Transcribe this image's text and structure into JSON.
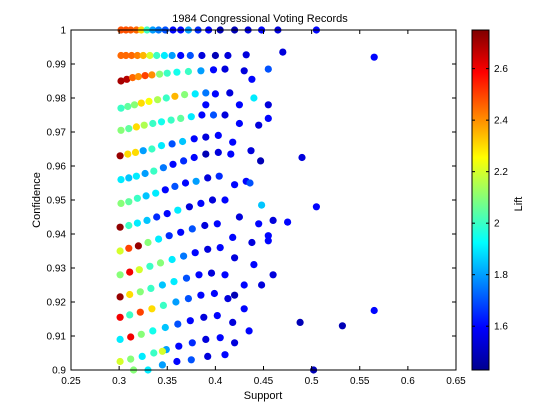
{
  "chart_data": {
    "type": "scatter",
    "title": "1984 Congressional Voting Records",
    "xlabel": "Support",
    "ylabel": "Confidence",
    "xlim": [
      0.25,
      0.65
    ],
    "ylim": [
      0.9,
      1.0
    ],
    "xticks": [
      "0.25",
      "0.3",
      "0.35",
      "0.4",
      "0.45",
      "0.5",
      "0.55",
      "0.6",
      "0.65"
    ],
    "yticks": [
      "0.9",
      "0.91",
      "0.92",
      "0.93",
      "0.94",
      "0.95",
      "0.96",
      "0.97",
      "0.98",
      "0.99",
      "1"
    ],
    "grid": false,
    "colorbar": {
      "label": "Lift",
      "range": [
        1.43,
        2.75
      ],
      "ticks": [
        "1.6",
        "1.8",
        "2",
        "2.2",
        "2.4",
        "2.6"
      ],
      "colormap": "jet"
    },
    "points": [
      {
        "x": 0.302,
        "y": 1.0,
        "c": 2.48
      },
      {
        "x": 0.307,
        "y": 1.0,
        "c": 2.48
      },
      {
        "x": 0.312,
        "y": 1.0,
        "c": 2.47
      },
      {
        "x": 0.318,
        "y": 1.0,
        "c": 2.45
      },
      {
        "x": 0.323,
        "y": 1.0,
        "c": 2.3
      },
      {
        "x": 0.329,
        "y": 1.0,
        "c": 2.0
      },
      {
        "x": 0.335,
        "y": 1.0,
        "c": 1.8
      },
      {
        "x": 0.341,
        "y": 1.0,
        "c": 1.75
      },
      {
        "x": 0.348,
        "y": 1.0,
        "c": 1.7
      },
      {
        "x": 0.356,
        "y": 1.0,
        "c": 1.6
      },
      {
        "x": 0.364,
        "y": 1.0,
        "c": 1.6
      },
      {
        "x": 0.372,
        "y": 1.0,
        "c": 1.8
      },
      {
        "x": 0.382,
        "y": 1.0,
        "c": 1.65
      },
      {
        "x": 0.393,
        "y": 1.0,
        "c": 1.6
      },
      {
        "x": 0.405,
        "y": 1.0,
        "c": 1.5
      },
      {
        "x": 0.42,
        "y": 1.0,
        "c": 1.5
      },
      {
        "x": 0.434,
        "y": 1.0,
        "c": 1.55
      },
      {
        "x": 0.448,
        "y": 1.0,
        "c": 1.6
      },
      {
        "x": 0.465,
        "y": 1.0,
        "c": 1.55
      },
      {
        "x": 0.505,
        "y": 1.0,
        "c": 1.6
      },
      {
        "x": 0.302,
        "y": 0.9925,
        "c": 2.45
      },
      {
        "x": 0.307,
        "y": 0.9925,
        "c": 2.45
      },
      {
        "x": 0.313,
        "y": 0.9925,
        "c": 2.45
      },
      {
        "x": 0.319,
        "y": 0.9925,
        "c": 2.42
      },
      {
        "x": 0.325,
        "y": 0.9925,
        "c": 2.35
      },
      {
        "x": 0.332,
        "y": 0.9925,
        "c": 2.2
      },
      {
        "x": 0.339,
        "y": 0.9925,
        "c": 2.0
      },
      {
        "x": 0.347,
        "y": 0.9925,
        "c": 1.9
      },
      {
        "x": 0.355,
        "y": 0.9925,
        "c": 1.8
      },
      {
        "x": 0.364,
        "y": 0.9925,
        "c": 1.6
      },
      {
        "x": 0.374,
        "y": 0.9925,
        "c": 1.7
      },
      {
        "x": 0.386,
        "y": 0.9925,
        "c": 1.55
      },
      {
        "x": 0.4,
        "y": 0.9925,
        "c": 1.5
      },
      {
        "x": 0.413,
        "y": 0.9925,
        "c": 1.55
      },
      {
        "x": 0.432,
        "y": 0.9927,
        "c": 1.55
      },
      {
        "x": 0.47,
        "y": 0.9935,
        "c": 1.55
      },
      {
        "x": 0.565,
        "y": 0.992,
        "c": 1.6
      },
      {
        "x": 0.302,
        "y": 0.985,
        "c": 2.7
      },
      {
        "x": 0.308,
        "y": 0.9855,
        "c": 2.68
      },
      {
        "x": 0.314,
        "y": 0.986,
        "c": 2.45
      },
      {
        "x": 0.32,
        "y": 0.9863,
        "c": 2.4
      },
      {
        "x": 0.327,
        "y": 0.9866,
        "c": 2.5
      },
      {
        "x": 0.334,
        "y": 0.9868,
        "c": 2.4
      },
      {
        "x": 0.342,
        "y": 0.987,
        "c": 2.1
      },
      {
        "x": 0.35,
        "y": 0.9873,
        "c": 2.0
      },
      {
        "x": 0.36,
        "y": 0.9876,
        "c": 1.95
      },
      {
        "x": 0.372,
        "y": 0.9878,
        "c": 2.0
      },
      {
        "x": 0.385,
        "y": 0.988,
        "c": 1.8
      },
      {
        "x": 0.398,
        "y": 0.9883,
        "c": 1.6
      },
      {
        "x": 0.41,
        "y": 0.9885,
        "c": 1.55
      },
      {
        "x": 0.43,
        "y": 0.988,
        "c": 1.55
      },
      {
        "x": 0.455,
        "y": 0.9885,
        "c": 1.7
      },
      {
        "x": 0.438,
        "y": 0.9855,
        "c": 1.6
      },
      {
        "x": 0.302,
        "y": 0.977,
        "c": 2.0
      },
      {
        "x": 0.309,
        "y": 0.9775,
        "c": 2.05
      },
      {
        "x": 0.316,
        "y": 0.978,
        "c": 2.1
      },
      {
        "x": 0.323,
        "y": 0.9785,
        "c": 2.3
      },
      {
        "x": 0.331,
        "y": 0.979,
        "c": 2.25
      },
      {
        "x": 0.34,
        "y": 0.9795,
        "c": 2.15
      },
      {
        "x": 0.349,
        "y": 0.98,
        "c": 2.0
      },
      {
        "x": 0.358,
        "y": 0.9805,
        "c": 2.35
      },
      {
        "x": 0.368,
        "y": 0.981,
        "c": 2.1
      },
      {
        "x": 0.379,
        "y": 0.9812,
        "c": 1.9
      },
      {
        "x": 0.39,
        "y": 0.9815,
        "c": 1.75
      },
      {
        "x": 0.4,
        "y": 0.9812,
        "c": 1.6
      },
      {
        "x": 0.415,
        "y": 0.9815,
        "c": 1.55
      },
      {
        "x": 0.425,
        "y": 0.978,
        "c": 1.6
      },
      {
        "x": 0.44,
        "y": 0.98,
        "c": 1.9
      },
      {
        "x": 0.455,
        "y": 0.978,
        "c": 1.55
      },
      {
        "x": 0.39,
        "y": 0.978,
        "c": 1.6
      },
      {
        "x": 0.302,
        "y": 0.9705,
        "c": 2.1
      },
      {
        "x": 0.31,
        "y": 0.971,
        "c": 2.05
      },
      {
        "x": 0.318,
        "y": 0.9715,
        "c": 2.3
      },
      {
        "x": 0.326,
        "y": 0.972,
        "c": 2.15
      },
      {
        "x": 0.335,
        "y": 0.9725,
        "c": 2.0
      },
      {
        "x": 0.344,
        "y": 0.973,
        "c": 1.95
      },
      {
        "x": 0.354,
        "y": 0.9735,
        "c": 2.0
      },
      {
        "x": 0.364,
        "y": 0.974,
        "c": 2.05
      },
      {
        "x": 0.375,
        "y": 0.9745,
        "c": 1.9
      },
      {
        "x": 0.386,
        "y": 0.975,
        "c": 1.6
      },
      {
        "x": 0.398,
        "y": 0.975,
        "c": 1.7
      },
      {
        "x": 0.41,
        "y": 0.975,
        "c": 1.55
      },
      {
        "x": 0.425,
        "y": 0.9725,
        "c": 1.6
      },
      {
        "x": 0.445,
        "y": 0.972,
        "c": 1.55
      },
      {
        "x": 0.455,
        "y": 0.974,
        "c": 1.6
      },
      {
        "x": 0.301,
        "y": 0.963,
        "c": 2.72
      },
      {
        "x": 0.309,
        "y": 0.9635,
        "c": 2.3
      },
      {
        "x": 0.317,
        "y": 0.964,
        "c": 2.3
      },
      {
        "x": 0.325,
        "y": 0.9645,
        "c": 1.8
      },
      {
        "x": 0.334,
        "y": 0.965,
        "c": 2.0
      },
      {
        "x": 0.344,
        "y": 0.966,
        "c": 1.9
      },
      {
        "x": 0.355,
        "y": 0.9665,
        "c": 1.7
      },
      {
        "x": 0.366,
        "y": 0.9672,
        "c": 1.85
      },
      {
        "x": 0.378,
        "y": 0.968,
        "c": 1.6
      },
      {
        "x": 0.39,
        "y": 0.9685,
        "c": 1.55
      },
      {
        "x": 0.403,
        "y": 0.969,
        "c": 1.6
      },
      {
        "x": 0.418,
        "y": 0.967,
        "c": 1.6
      },
      {
        "x": 0.437,
        "y": 0.9645,
        "c": 1.55
      },
      {
        "x": 0.447,
        "y": 0.9615,
        "c": 1.5
      },
      {
        "x": 0.49,
        "y": 0.9625,
        "c": 1.55
      },
      {
        "x": 0.302,
        "y": 0.956,
        "c": 1.9
      },
      {
        "x": 0.31,
        "y": 0.9565,
        "c": 1.85
      },
      {
        "x": 0.318,
        "y": 0.957,
        "c": 1.9
      },
      {
        "x": 0.327,
        "y": 0.9578,
        "c": 1.8
      },
      {
        "x": 0.336,
        "y": 0.9585,
        "c": 2.0
      },
      {
        "x": 0.346,
        "y": 0.9595,
        "c": 1.75
      },
      {
        "x": 0.356,
        "y": 0.9605,
        "c": 1.6
      },
      {
        "x": 0.367,
        "y": 0.9615,
        "c": 1.65
      },
      {
        "x": 0.378,
        "y": 0.9625,
        "c": 1.6
      },
      {
        "x": 0.39,
        "y": 0.9635,
        "c": 1.5
      },
      {
        "x": 0.403,
        "y": 0.964,
        "c": 1.55
      },
      {
        "x": 0.416,
        "y": 0.9635,
        "c": 1.6
      },
      {
        "x": 0.432,
        "y": 0.9555,
        "c": 1.6
      },
      {
        "x": 0.436,
        "y": 0.955,
        "c": 1.7
      },
      {
        "x": 0.302,
        "y": 0.949,
        "c": 2.1
      },
      {
        "x": 0.31,
        "y": 0.9495,
        "c": 2.05
      },
      {
        "x": 0.319,
        "y": 0.9505,
        "c": 2.0
      },
      {
        "x": 0.328,
        "y": 0.9512,
        "c": 1.85
      },
      {
        "x": 0.338,
        "y": 0.952,
        "c": 1.9
      },
      {
        "x": 0.348,
        "y": 0.953,
        "c": 1.6
      },
      {
        "x": 0.358,
        "y": 0.954,
        "c": 1.7
      },
      {
        "x": 0.369,
        "y": 0.955,
        "c": 1.6
      },
      {
        "x": 0.38,
        "y": 0.9555,
        "c": 1.8
      },
      {
        "x": 0.392,
        "y": 0.9565,
        "c": 1.55
      },
      {
        "x": 0.404,
        "y": 0.957,
        "c": 1.65
      },
      {
        "x": 0.42,
        "y": 0.9545,
        "c": 1.6
      },
      {
        "x": 0.448,
        "y": 0.9485,
        "c": 1.85
      },
      {
        "x": 0.505,
        "y": 0.948,
        "c": 1.6
      },
      {
        "x": 0.301,
        "y": 0.942,
        "c": 2.73
      },
      {
        "x": 0.31,
        "y": 0.9425,
        "c": 2.0
      },
      {
        "x": 0.319,
        "y": 0.9432,
        "c": 1.9
      },
      {
        "x": 0.329,
        "y": 0.944,
        "c": 1.85
      },
      {
        "x": 0.339,
        "y": 0.945,
        "c": 1.65
      },
      {
        "x": 0.35,
        "y": 0.946,
        "c": 1.6
      },
      {
        "x": 0.361,
        "y": 0.947,
        "c": 1.9
      },
      {
        "x": 0.373,
        "y": 0.948,
        "c": 1.55
      },
      {
        "x": 0.385,
        "y": 0.949,
        "c": 1.6
      },
      {
        "x": 0.397,
        "y": 0.95,
        "c": 1.55
      },
      {
        "x": 0.41,
        "y": 0.95,
        "c": 1.6
      },
      {
        "x": 0.425,
        "y": 0.945,
        "c": 1.55
      },
      {
        "x": 0.445,
        "y": 0.943,
        "c": 1.6
      },
      {
        "x": 0.46,
        "y": 0.944,
        "c": 1.55
      },
      {
        "x": 0.475,
        "y": 0.9435,
        "c": 1.6
      },
      {
        "x": 0.455,
        "y": 0.9395,
        "c": 1.6
      },
      {
        "x": 0.301,
        "y": 0.935,
        "c": 2.2
      },
      {
        "x": 0.31,
        "y": 0.9358,
        "c": 2.5
      },
      {
        "x": 0.32,
        "y": 0.9365,
        "c": 2.72
      },
      {
        "x": 0.33,
        "y": 0.9375,
        "c": 2.1
      },
      {
        "x": 0.341,
        "y": 0.9385,
        "c": 1.9
      },
      {
        "x": 0.352,
        "y": 0.9395,
        "c": 1.65
      },
      {
        "x": 0.364,
        "y": 0.9405,
        "c": 1.6
      },
      {
        "x": 0.376,
        "y": 0.9415,
        "c": 1.7
      },
      {
        "x": 0.389,
        "y": 0.9425,
        "c": 1.55
      },
      {
        "x": 0.402,
        "y": 0.943,
        "c": 1.6
      },
      {
        "x": 0.418,
        "y": 0.939,
        "c": 1.6
      },
      {
        "x": 0.438,
        "y": 0.9375,
        "c": 1.55
      },
      {
        "x": 0.455,
        "y": 0.938,
        "c": 1.6
      },
      {
        "x": 0.301,
        "y": 0.928,
        "c": 2.1
      },
      {
        "x": 0.311,
        "y": 0.9288,
        "c": 2.6
      },
      {
        "x": 0.321,
        "y": 0.9295,
        "c": 2.2
      },
      {
        "x": 0.332,
        "y": 0.9305,
        "c": 2.0
      },
      {
        "x": 0.343,
        "y": 0.9315,
        "c": 2.1
      },
      {
        "x": 0.355,
        "y": 0.9325,
        "c": 1.9
      },
      {
        "x": 0.367,
        "y": 0.9335,
        "c": 1.75
      },
      {
        "x": 0.379,
        "y": 0.9345,
        "c": 1.6
      },
      {
        "x": 0.392,
        "y": 0.9355,
        "c": 1.55
      },
      {
        "x": 0.405,
        "y": 0.936,
        "c": 1.6
      },
      {
        "x": 0.42,
        "y": 0.933,
        "c": 1.55
      },
      {
        "x": 0.44,
        "y": 0.931,
        "c": 1.6
      },
      {
        "x": 0.46,
        "y": 0.928,
        "c": 1.55
      },
      {
        "x": 0.301,
        "y": 0.9215,
        "c": 2.72
      },
      {
        "x": 0.311,
        "y": 0.9222,
        "c": 2.3
      },
      {
        "x": 0.322,
        "y": 0.923,
        "c": 2.1
      },
      {
        "x": 0.333,
        "y": 0.924,
        "c": 2.0
      },
      {
        "x": 0.345,
        "y": 0.925,
        "c": 1.85
      },
      {
        "x": 0.357,
        "y": 0.926,
        "c": 1.9
      },
      {
        "x": 0.37,
        "y": 0.927,
        "c": 1.7
      },
      {
        "x": 0.383,
        "y": 0.928,
        "c": 1.6
      },
      {
        "x": 0.396,
        "y": 0.9285,
        "c": 1.55
      },
      {
        "x": 0.41,
        "y": 0.928,
        "c": 1.6
      },
      {
        "x": 0.43,
        "y": 0.925,
        "c": 1.6
      },
      {
        "x": 0.448,
        "y": 0.925,
        "c": 1.55
      },
      {
        "x": 0.42,
        "y": 0.922,
        "c": 1.5
      },
      {
        "x": 0.301,
        "y": 0.9155,
        "c": 2.6
      },
      {
        "x": 0.311,
        "y": 0.9162,
        "c": 2.0
      },
      {
        "x": 0.322,
        "y": 0.917,
        "c": 2.5
      },
      {
        "x": 0.334,
        "y": 0.918,
        "c": 2.3
      },
      {
        "x": 0.346,
        "y": 0.919,
        "c": 2.0
      },
      {
        "x": 0.359,
        "y": 0.92,
        "c": 1.8
      },
      {
        "x": 0.372,
        "y": 0.921,
        "c": 1.7
      },
      {
        "x": 0.385,
        "y": 0.922,
        "c": 1.6
      },
      {
        "x": 0.399,
        "y": 0.9225,
        "c": 1.6
      },
      {
        "x": 0.413,
        "y": 0.921,
        "c": 1.55
      },
      {
        "x": 0.43,
        "y": 0.918,
        "c": 1.6
      },
      {
        "x": 0.565,
        "y": 0.9175,
        "c": 1.6
      },
      {
        "x": 0.301,
        "y": 0.909,
        "c": 1.9
      },
      {
        "x": 0.312,
        "y": 0.9097,
        "c": 2.6
      },
      {
        "x": 0.323,
        "y": 0.9105,
        "c": 2.1
      },
      {
        "x": 0.335,
        "y": 0.9115,
        "c": 1.95
      },
      {
        "x": 0.348,
        "y": 0.9125,
        "c": 1.85
      },
      {
        "x": 0.361,
        "y": 0.9135,
        "c": 1.7
      },
      {
        "x": 0.374,
        "y": 0.9145,
        "c": 1.6
      },
      {
        "x": 0.388,
        "y": 0.9155,
        "c": 1.55
      },
      {
        "x": 0.402,
        "y": 0.916,
        "c": 1.6
      },
      {
        "x": 0.418,
        "y": 0.914,
        "c": 1.55
      },
      {
        "x": 0.435,
        "y": 0.9115,
        "c": 1.6
      },
      {
        "x": 0.488,
        "y": 0.914,
        "c": 1.5
      },
      {
        "x": 0.532,
        "y": 0.913,
        "c": 1.5
      },
      {
        "x": 0.301,
        "y": 0.9025,
        "c": 2.2
      },
      {
        "x": 0.312,
        "y": 0.9032,
        "c": 2.1
      },
      {
        "x": 0.324,
        "y": 0.904,
        "c": 1.9
      },
      {
        "x": 0.336,
        "y": 0.905,
        "c": 2.0
      },
      {
        "x": 0.349,
        "y": 0.906,
        "c": 1.8
      },
      {
        "x": 0.362,
        "y": 0.907,
        "c": 1.6
      },
      {
        "x": 0.376,
        "y": 0.908,
        "c": 1.65
      },
      {
        "x": 0.39,
        "y": 0.909,
        "c": 1.55
      },
      {
        "x": 0.405,
        "y": 0.9095,
        "c": 1.6
      },
      {
        "x": 0.42,
        "y": 0.908,
        "c": 1.55
      },
      {
        "x": 0.315,
        "y": 0.9,
        "c": 2.1
      },
      {
        "x": 0.33,
        "y": 0.9,
        "c": 1.9
      },
      {
        "x": 0.345,
        "y": 0.9015,
        "c": 1.8
      },
      {
        "x": 0.36,
        "y": 0.9025,
        "c": 1.6
      },
      {
        "x": 0.375,
        "y": 0.903,
        "c": 1.7
      },
      {
        "x": 0.392,
        "y": 0.904,
        "c": 1.55
      },
      {
        "x": 0.41,
        "y": 0.9045,
        "c": 1.6
      },
      {
        "x": 0.502,
        "y": 0.9,
        "c": 1.5
      },
      {
        "x": 0.345,
        "y": 0.9055,
        "c": 2.2
      }
    ]
  }
}
